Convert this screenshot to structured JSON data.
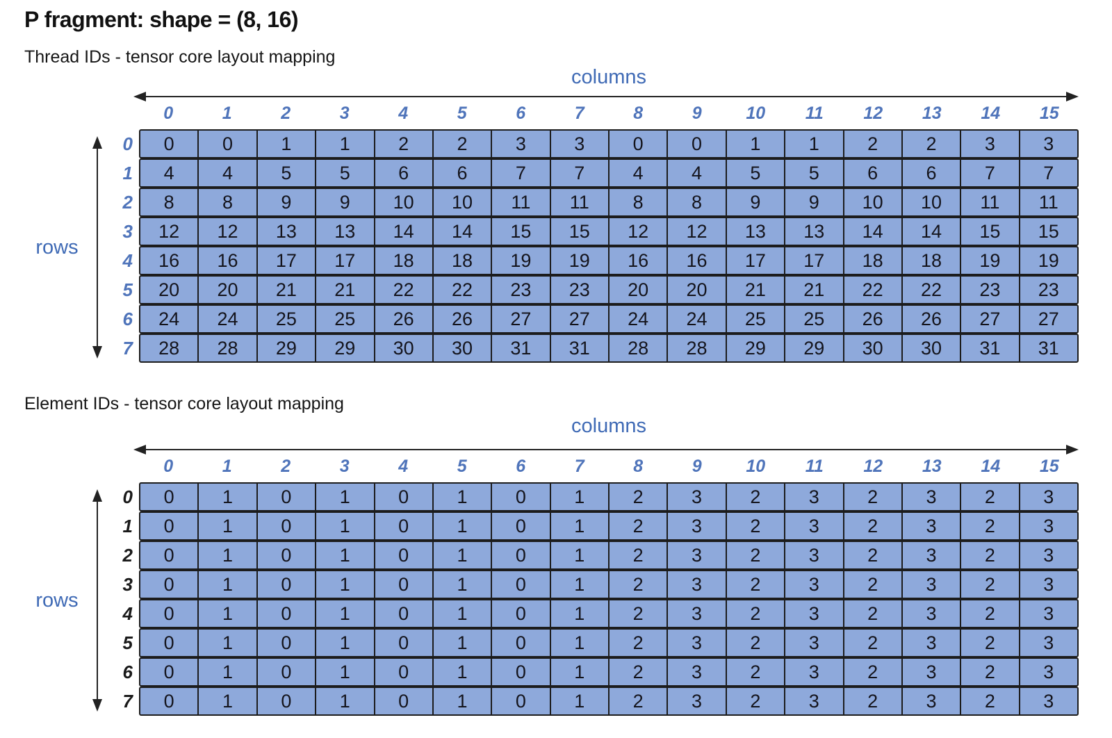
{
  "title": "P fragment: shape = (8, 16)",
  "colors": {
    "cell_fill": "#8ea9db",
    "cell_border": "#1c1c1c",
    "label_blue": "#3f6ab5",
    "index_blue": "#4f74ba",
    "index_black": "#1a1a1a"
  },
  "sections": [
    {
      "subtitle": "Thread IDs - tensor core layout mapping",
      "columns_label": "columns",
      "rows_label": "rows",
      "column_indices": [
        "0",
        "1",
        "2",
        "3",
        "4",
        "5",
        "6",
        "7",
        "8",
        "9",
        "10",
        "11",
        "12",
        "13",
        "14",
        "15"
      ],
      "row_indices": [
        "0",
        "1",
        "2",
        "3",
        "4",
        "5",
        "6",
        "7"
      ],
      "grid": [
        [
          "0",
          "0",
          "1",
          "1",
          "2",
          "2",
          "3",
          "3",
          "0",
          "0",
          "1",
          "1",
          "2",
          "2",
          "3",
          "3"
        ],
        [
          "4",
          "4",
          "5",
          "5",
          "6",
          "6",
          "7",
          "7",
          "4",
          "4",
          "5",
          "5",
          "6",
          "6",
          "7",
          "7"
        ],
        [
          "8",
          "8",
          "9",
          "9",
          "10",
          "10",
          "11",
          "11",
          "8",
          "8",
          "9",
          "9",
          "10",
          "10",
          "11",
          "11"
        ],
        [
          "12",
          "12",
          "13",
          "13",
          "14",
          "14",
          "15",
          "15",
          "12",
          "12",
          "13",
          "13",
          "14",
          "14",
          "15",
          "15"
        ],
        [
          "16",
          "16",
          "17",
          "17",
          "18",
          "18",
          "19",
          "19",
          "16",
          "16",
          "17",
          "17",
          "18",
          "18",
          "19",
          "19"
        ],
        [
          "20",
          "20",
          "21",
          "21",
          "22",
          "22",
          "23",
          "23",
          "20",
          "20",
          "21",
          "21",
          "22",
          "22",
          "23",
          "23"
        ],
        [
          "24",
          "24",
          "25",
          "25",
          "26",
          "26",
          "27",
          "27",
          "24",
          "24",
          "25",
          "25",
          "26",
          "26",
          "27",
          "27"
        ],
        [
          "28",
          "28",
          "29",
          "29",
          "30",
          "30",
          "31",
          "31",
          "28",
          "28",
          "29",
          "29",
          "30",
          "30",
          "31",
          "31"
        ]
      ]
    },
    {
      "subtitle": "Element IDs - tensor core layout mapping",
      "columns_label": "columns",
      "rows_label": "rows",
      "column_indices": [
        "0",
        "1",
        "2",
        "3",
        "4",
        "5",
        "6",
        "7",
        "8",
        "9",
        "10",
        "11",
        "12",
        "13",
        "14",
        "15"
      ],
      "row_indices": [
        "0",
        "1",
        "2",
        "3",
        "4",
        "5",
        "6",
        "7"
      ],
      "grid": [
        [
          "0",
          "1",
          "0",
          "1",
          "0",
          "1",
          "0",
          "1",
          "2",
          "3",
          "2",
          "3",
          "2",
          "3",
          "2",
          "3"
        ],
        [
          "0",
          "1",
          "0",
          "1",
          "0",
          "1",
          "0",
          "1",
          "2",
          "3",
          "2",
          "3",
          "2",
          "3",
          "2",
          "3"
        ],
        [
          "0",
          "1",
          "0",
          "1",
          "0",
          "1",
          "0",
          "1",
          "2",
          "3",
          "2",
          "3",
          "2",
          "3",
          "2",
          "3"
        ],
        [
          "0",
          "1",
          "0",
          "1",
          "0",
          "1",
          "0",
          "1",
          "2",
          "3",
          "2",
          "3",
          "2",
          "3",
          "2",
          "3"
        ],
        [
          "0",
          "1",
          "0",
          "1",
          "0",
          "1",
          "0",
          "1",
          "2",
          "3",
          "2",
          "3",
          "2",
          "3",
          "2",
          "3"
        ],
        [
          "0",
          "1",
          "0",
          "1",
          "0",
          "1",
          "0",
          "1",
          "2",
          "3",
          "2",
          "3",
          "2",
          "3",
          "2",
          "3"
        ],
        [
          "0",
          "1",
          "0",
          "1",
          "0",
          "1",
          "0",
          "1",
          "2",
          "3",
          "2",
          "3",
          "2",
          "3",
          "2",
          "3"
        ],
        [
          "0",
          "1",
          "0",
          "1",
          "0",
          "1",
          "0",
          "1",
          "2",
          "3",
          "2",
          "3",
          "2",
          "3",
          "2",
          "3"
        ]
      ]
    }
  ]
}
